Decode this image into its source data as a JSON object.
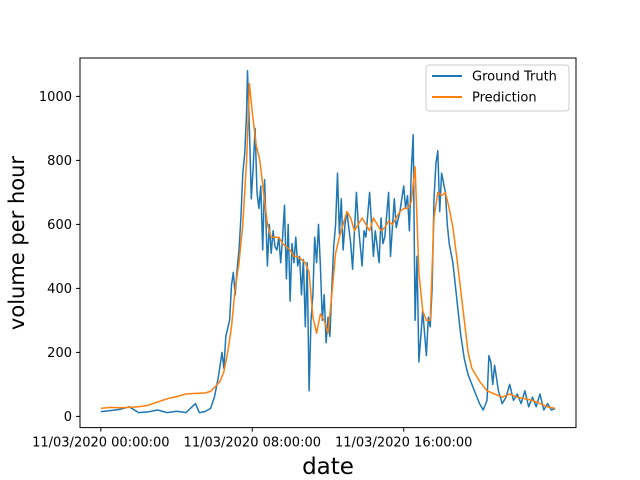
{
  "chart_data": {
    "type": "line",
    "xlabel": "date",
    "ylabel": "volume per hour",
    "x_ticks": [
      "11/03/2020 00:00:00",
      "11/03/2020 08:00:00",
      "11/03/2020 16:00:00"
    ],
    "x_tick_hours": [
      0,
      8,
      16
    ],
    "xlim_hours": [
      -1.1,
      25.1
    ],
    "ylim": [
      -35,
      1120
    ],
    "y_ticks": [
      0,
      200,
      400,
      600,
      800,
      1000
    ],
    "legend_position": "top-right",
    "colors": {
      "Ground Truth": "#1f77b4",
      "Prediction": "#ff7f0e"
    },
    "series": [
      {
        "name": "Ground Truth",
        "points": [
          [
            0.0,
            15
          ],
          [
            0.5,
            18
          ],
          [
            1.0,
            22
          ],
          [
            1.5,
            30
          ],
          [
            2.0,
            12
          ],
          [
            2.5,
            14
          ],
          [
            3.0,
            20
          ],
          [
            3.5,
            12
          ],
          [
            4.0,
            16
          ],
          [
            4.5,
            12
          ],
          [
            5.0,
            40
          ],
          [
            5.2,
            12
          ],
          [
            5.5,
            15
          ],
          [
            5.8,
            25
          ],
          [
            6.0,
            60
          ],
          [
            6.2,
            120
          ],
          [
            6.4,
            200
          ],
          [
            6.5,
            150
          ],
          [
            6.6,
            250
          ],
          [
            6.8,
            300
          ],
          [
            6.9,
            410
          ],
          [
            7.0,
            450
          ],
          [
            7.1,
            380
          ],
          [
            7.2,
            460
          ],
          [
            7.3,
            520
          ],
          [
            7.4,
            620
          ],
          [
            7.5,
            760
          ],
          [
            7.6,
            820
          ],
          [
            7.7,
            950
          ],
          [
            7.75,
            1080
          ],
          [
            7.85,
            900
          ],
          [
            7.95,
            680
          ],
          [
            8.05,
            780
          ],
          [
            8.15,
            900
          ],
          [
            8.25,
            700
          ],
          [
            8.35,
            650
          ],
          [
            8.45,
            720
          ],
          [
            8.55,
            520
          ],
          [
            8.65,
            740
          ],
          [
            8.8,
            470
          ],
          [
            8.9,
            600
          ],
          [
            9.0,
            510
          ],
          [
            9.1,
            580
          ],
          [
            9.2,
            530
          ],
          [
            9.3,
            520
          ],
          [
            9.4,
            560
          ],
          [
            9.5,
            480
          ],
          [
            9.6,
            560
          ],
          [
            9.7,
            660
          ],
          [
            9.8,
            430
          ],
          [
            9.9,
            600
          ],
          [
            10.0,
            360
          ],
          [
            10.1,
            540
          ],
          [
            10.2,
            480
          ],
          [
            10.3,
            560
          ],
          [
            10.4,
            470
          ],
          [
            10.5,
            500
          ],
          [
            10.6,
            380
          ],
          [
            10.7,
            490
          ],
          [
            10.8,
            280
          ],
          [
            10.9,
            480
          ],
          [
            11.0,
            80
          ],
          [
            11.1,
            300
          ],
          [
            11.2,
            380
          ],
          [
            11.3,
            560
          ],
          [
            11.4,
            480
          ],
          [
            11.5,
            600
          ],
          [
            11.6,
            470
          ],
          [
            11.7,
            300
          ],
          [
            11.8,
            380
          ],
          [
            11.9,
            230
          ],
          [
            12.0,
            310
          ],
          [
            12.1,
            250
          ],
          [
            12.2,
            400
          ],
          [
            12.3,
            530
          ],
          [
            12.4,
            600
          ],
          [
            12.5,
            760
          ],
          [
            12.6,
            570
          ],
          [
            12.7,
            680
          ],
          [
            12.8,
            520
          ],
          [
            12.9,
            600
          ],
          [
            13.0,
            640
          ],
          [
            13.2,
            540
          ],
          [
            13.3,
            460
          ],
          [
            13.5,
            700
          ],
          [
            13.6,
            600
          ],
          [
            13.8,
            470
          ],
          [
            13.9,
            580
          ],
          [
            14.0,
            560
          ],
          [
            14.2,
            700
          ],
          [
            14.4,
            500
          ],
          [
            14.5,
            580
          ],
          [
            14.7,
            480
          ],
          [
            14.8,
            620
          ],
          [
            14.9,
            540
          ],
          [
            15.0,
            560
          ],
          [
            15.2,
            700
          ],
          [
            15.3,
            500
          ],
          [
            15.5,
            680
          ],
          [
            15.6,
            590
          ],
          [
            15.8,
            640
          ],
          [
            16.0,
            720
          ],
          [
            16.1,
            650
          ],
          [
            16.2,
            690
          ],
          [
            16.3,
            580
          ],
          [
            16.4,
            770
          ],
          [
            16.5,
            880
          ],
          [
            16.6,
            300
          ],
          [
            16.7,
            500
          ],
          [
            16.8,
            170
          ],
          [
            16.9,
            250
          ],
          [
            17.0,
            330
          ],
          [
            17.2,
            190
          ],
          [
            17.3,
            310
          ],
          [
            17.4,
            280
          ],
          [
            17.5,
            400
          ],
          [
            17.6,
            680
          ],
          [
            17.7,
            790
          ],
          [
            17.8,
            830
          ],
          [
            17.9,
            640
          ],
          [
            18.0,
            760
          ],
          [
            18.2,
            700
          ],
          [
            18.3,
            600
          ],
          [
            18.4,
            540
          ],
          [
            18.6,
            480
          ],
          [
            18.8,
            370
          ],
          [
            19.0,
            260
          ],
          [
            19.2,
            180
          ],
          [
            19.4,
            130
          ],
          [
            19.6,
            100
          ],
          [
            19.8,
            70
          ],
          [
            20.0,
            40
          ],
          [
            20.2,
            20
          ],
          [
            20.4,
            50
          ],
          [
            20.5,
            190
          ],
          [
            20.6,
            170
          ],
          [
            20.7,
            100
          ],
          [
            20.8,
            160
          ],
          [
            21.0,
            80
          ],
          [
            21.2,
            40
          ],
          [
            21.4,
            60
          ],
          [
            21.6,
            100
          ],
          [
            21.8,
            50
          ],
          [
            22.0,
            70
          ],
          [
            22.2,
            40
          ],
          [
            22.4,
            80
          ],
          [
            22.6,
            30
          ],
          [
            22.8,
            60
          ],
          [
            23.0,
            30
          ],
          [
            23.2,
            70
          ],
          [
            23.4,
            20
          ],
          [
            23.6,
            40
          ],
          [
            23.8,
            20
          ],
          [
            24.0,
            25
          ]
        ]
      },
      {
        "name": "Prediction",
        "points": [
          [
            0.0,
            25
          ],
          [
            0.5,
            28
          ],
          [
            1.0,
            27
          ],
          [
            1.5,
            28
          ],
          [
            2.0,
            30
          ],
          [
            2.5,
            35
          ],
          [
            3.0,
            45
          ],
          [
            3.5,
            55
          ],
          [
            4.0,
            62
          ],
          [
            4.5,
            70
          ],
          [
            5.0,
            72
          ],
          [
            5.5,
            73
          ],
          [
            5.8,
            78
          ],
          [
            6.0,
            90
          ],
          [
            6.3,
            110
          ],
          [
            6.5,
            140
          ],
          [
            6.7,
            200
          ],
          [
            6.9,
            280
          ],
          [
            7.1,
            400
          ],
          [
            7.3,
            480
          ],
          [
            7.5,
            600
          ],
          [
            7.7,
            800
          ],
          [
            7.85,
            1040
          ],
          [
            8.0,
            950
          ],
          [
            8.2,
            850
          ],
          [
            8.4,
            800
          ],
          [
            8.6,
            700
          ],
          [
            8.8,
            600
          ],
          [
            9.0,
            560
          ],
          [
            9.2,
            560
          ],
          [
            9.4,
            560
          ],
          [
            9.6,
            540
          ],
          [
            9.8,
            530
          ],
          [
            10.0,
            520
          ],
          [
            10.2,
            500
          ],
          [
            10.4,
            500
          ],
          [
            10.6,
            490
          ],
          [
            10.8,
            480
          ],
          [
            11.0,
            450
          ],
          [
            11.2,
            310
          ],
          [
            11.4,
            260
          ],
          [
            11.6,
            320
          ],
          [
            11.8,
            300
          ],
          [
            12.0,
            260
          ],
          [
            12.2,
            380
          ],
          [
            12.4,
            510
          ],
          [
            12.6,
            560
          ],
          [
            12.8,
            600
          ],
          [
            13.0,
            640
          ],
          [
            13.2,
            620
          ],
          [
            13.4,
            580
          ],
          [
            13.6,
            600
          ],
          [
            13.8,
            620
          ],
          [
            14.0,
            600
          ],
          [
            14.2,
            580
          ],
          [
            14.4,
            620
          ],
          [
            14.6,
            600
          ],
          [
            14.8,
            580
          ],
          [
            15.0,
            590
          ],
          [
            15.2,
            610
          ],
          [
            15.4,
            600
          ],
          [
            15.6,
            620
          ],
          [
            15.8,
            640
          ],
          [
            16.0,
            650
          ],
          [
            16.2,
            650
          ],
          [
            16.4,
            670
          ],
          [
            16.6,
            780
          ],
          [
            16.8,
            450
          ],
          [
            17.0,
            330
          ],
          [
            17.2,
            300
          ],
          [
            17.4,
            300
          ],
          [
            17.6,
            620
          ],
          [
            17.8,
            700
          ],
          [
            18.0,
            690
          ],
          [
            18.2,
            700
          ],
          [
            18.4,
            650
          ],
          [
            18.6,
            590
          ],
          [
            18.8,
            500
          ],
          [
            19.0,
            400
          ],
          [
            19.2,
            300
          ],
          [
            19.4,
            200
          ],
          [
            19.6,
            150
          ],
          [
            19.8,
            130
          ],
          [
            20.0,
            110
          ],
          [
            20.4,
            80
          ],
          [
            20.8,
            70
          ],
          [
            21.2,
            60
          ],
          [
            21.6,
            70
          ],
          [
            22.0,
            60
          ],
          [
            22.4,
            55
          ],
          [
            22.8,
            50
          ],
          [
            23.2,
            40
          ],
          [
            23.6,
            30
          ],
          [
            24.0,
            25
          ]
        ]
      }
    ]
  }
}
